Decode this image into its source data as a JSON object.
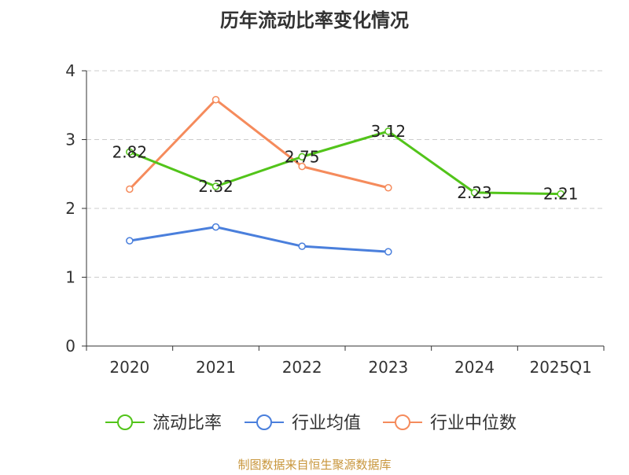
{
  "chart_data": {
    "type": "line",
    "title": "历年流动比率变化情况",
    "categories": [
      "2020",
      "2021",
      "2022",
      "2023",
      "2024",
      "2025Q1"
    ],
    "ylim": [
      0,
      4
    ],
    "yticks": [
      "0",
      "1",
      "2",
      "3",
      "4"
    ],
    "grid": "horizontal-dashed",
    "legend_position": "bottom",
    "series": [
      {
        "name": "流动比率",
        "color": "#52c41a",
        "values": [
          2.82,
          2.32,
          2.75,
          3.12,
          2.23,
          2.21
        ],
        "labels": [
          "2.82",
          "2.32",
          "2.75",
          "3.12",
          "2.23",
          "2.21"
        ],
        "marker": "circle"
      },
      {
        "name": "行业均值",
        "color": "#4a7fdc",
        "values": [
          1.53,
          1.73,
          1.45,
          1.37,
          null,
          null
        ],
        "marker": "circle"
      },
      {
        "name": "行业中位数",
        "color": "#f58b5c",
        "values": [
          2.28,
          3.58,
          2.61,
          2.3,
          null,
          null
        ],
        "marker": "circle"
      }
    ],
    "source": "制图数据来自恒生聚源数据库"
  }
}
